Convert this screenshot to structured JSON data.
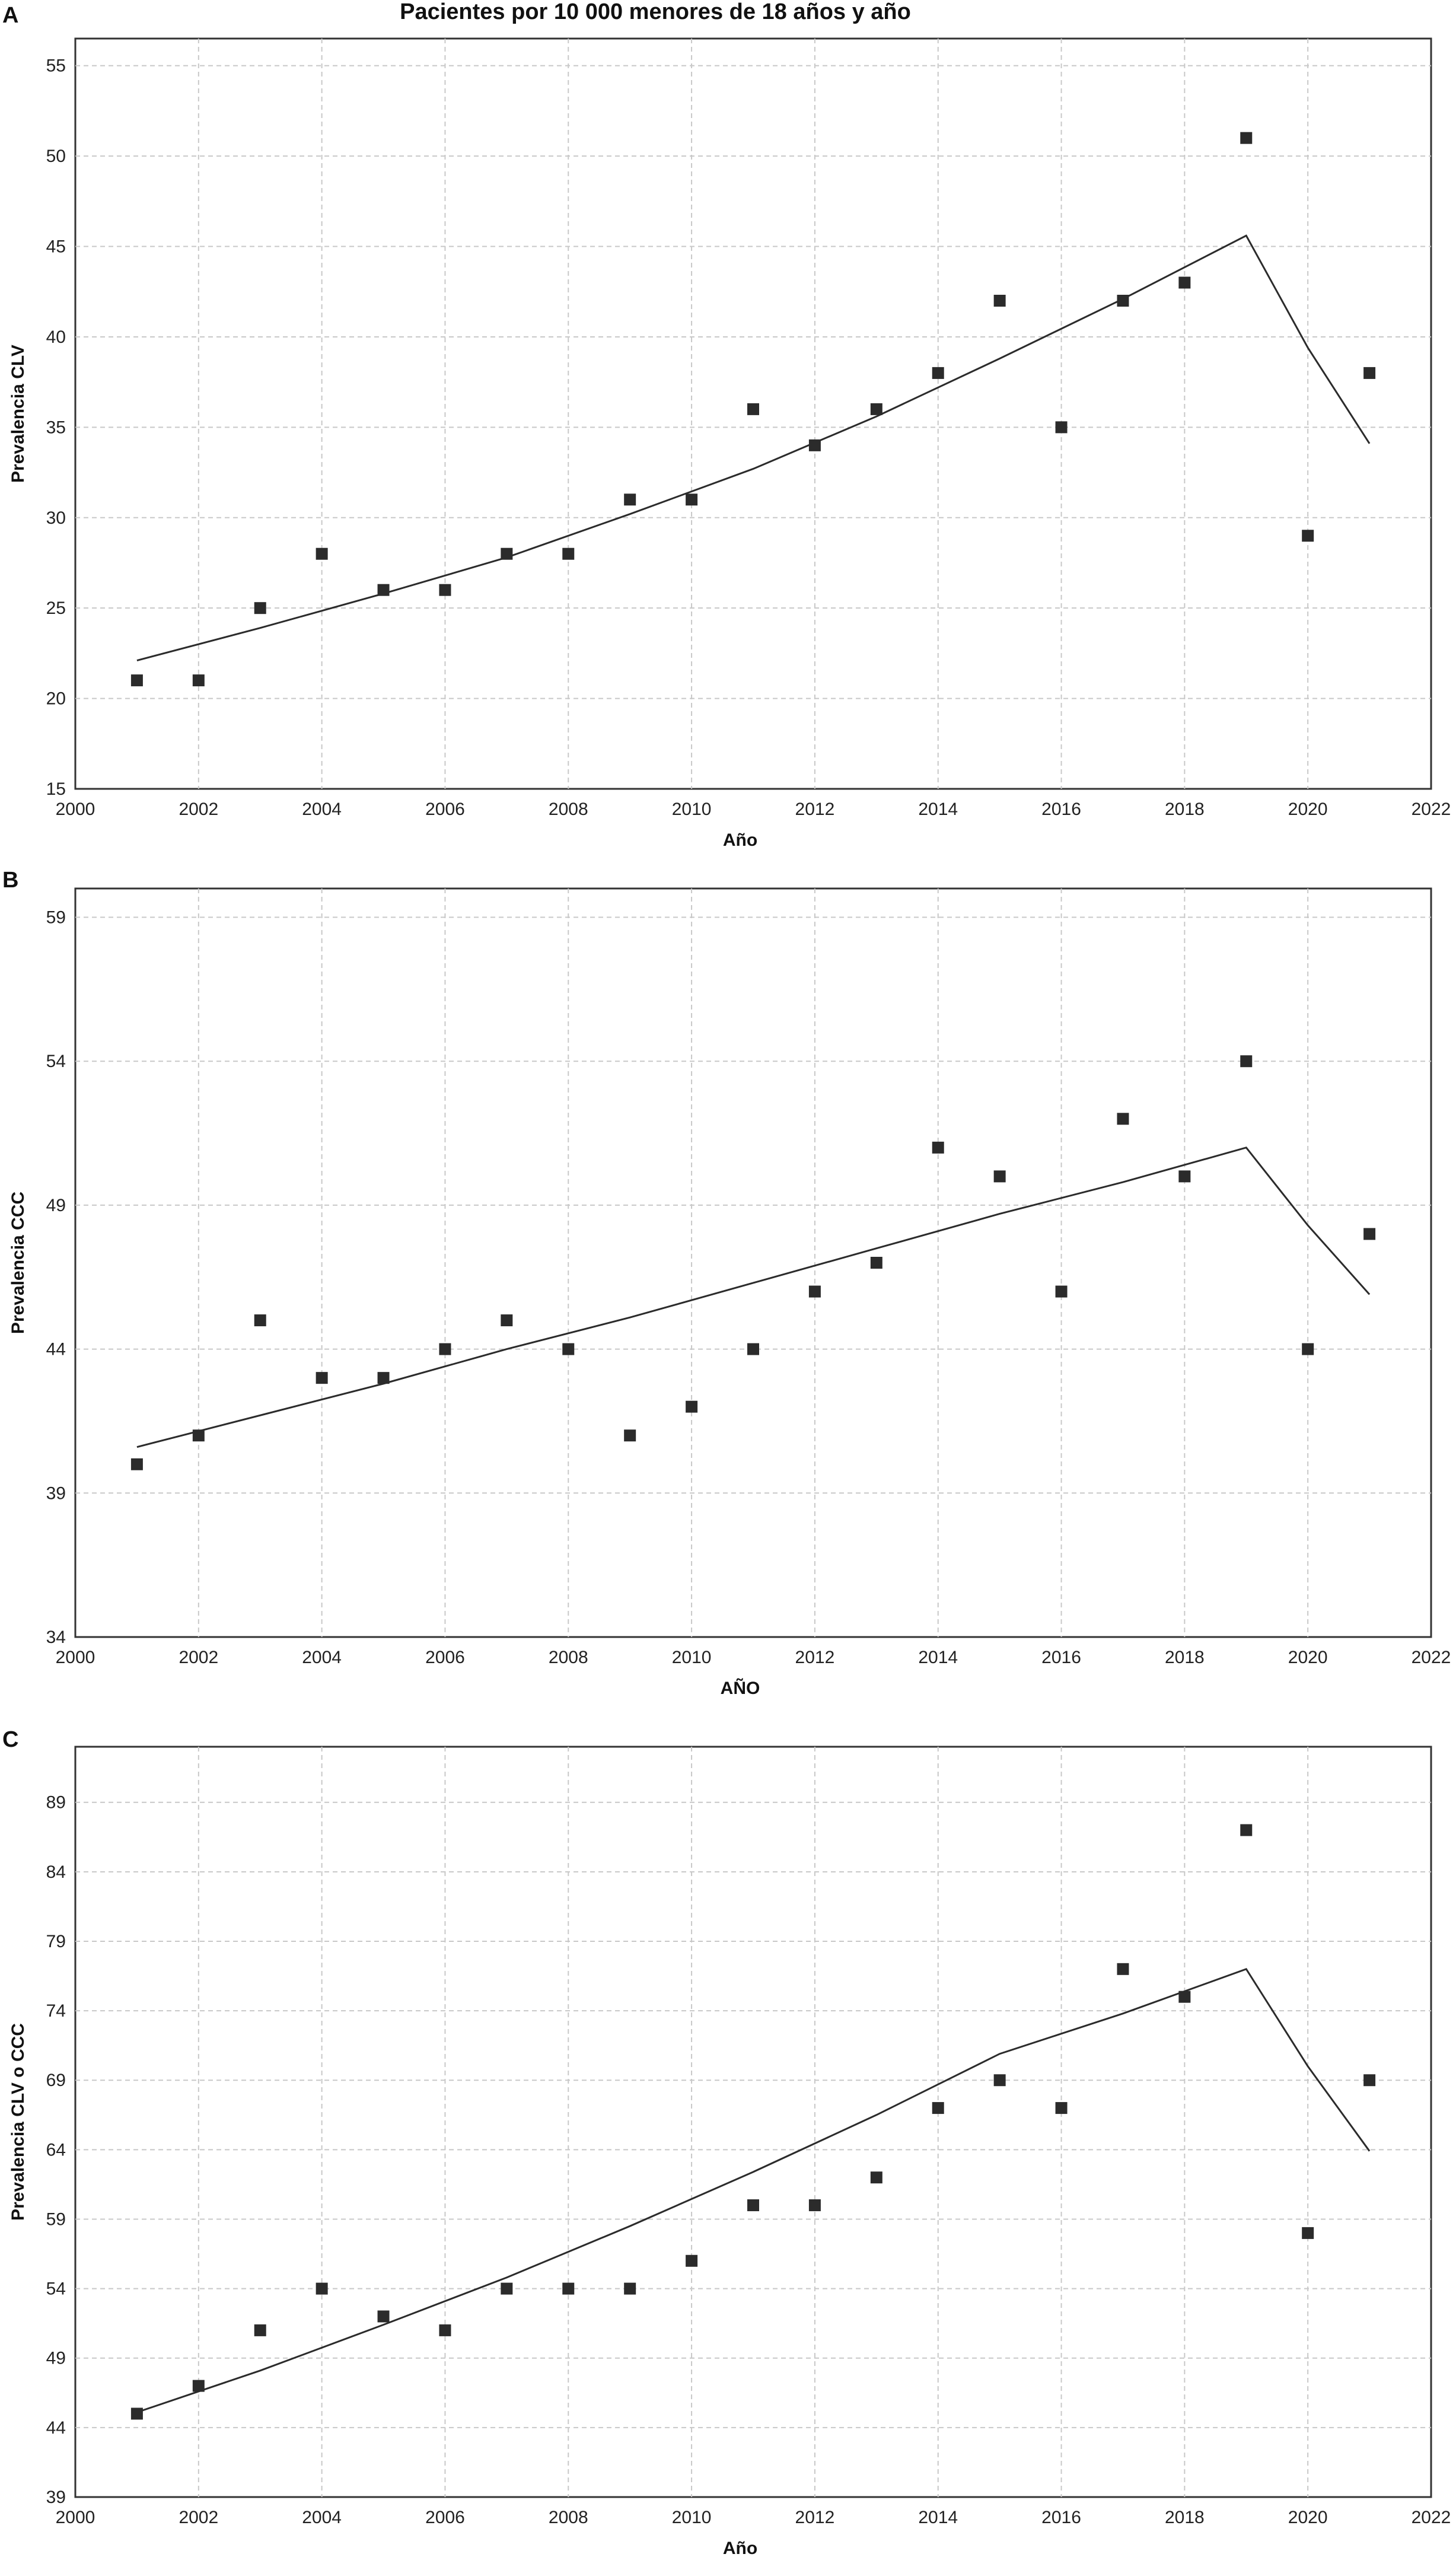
{
  "title": "Pacientes por 10 000 menores de 18 años y año",
  "chart_data": [
    {
      "type": "scatter",
      "panel": "A",
      "xlabel": "Año",
      "ylabel": "Prevalencia CLV",
      "xlim": [
        2000,
        2022
      ],
      "ylim": [
        15,
        56.5
      ],
      "xticks": [
        2000,
        2002,
        2004,
        2006,
        2008,
        2010,
        2012,
        2014,
        2016,
        2018,
        2020,
        2022
      ],
      "yticks": [
        15,
        20,
        25,
        30,
        35,
        40,
        45,
        50,
        55
      ],
      "grid": true,
      "x": [
        2001,
        2002,
        2003,
        2004,
        2005,
        2006,
        2007,
        2008,
        2009,
        2010,
        2011,
        2012,
        2013,
        2014,
        2015,
        2016,
        2017,
        2018,
        2019,
        2020,
        2021
      ],
      "y": [
        21,
        21,
        25,
        28,
        26,
        26,
        28,
        28,
        31,
        31,
        36,
        34,
        36,
        38,
        42,
        35,
        42,
        43,
        51,
        29,
        38
      ],
      "fit": {
        "x": [
          2001,
          2003,
          2005,
          2007,
          2009,
          2011,
          2013,
          2015,
          2017,
          2019,
          2020,
          2021
        ],
        "y": [
          22.1,
          23.9,
          25.8,
          27.8,
          30.2,
          32.7,
          35.6,
          38.8,
          42.1,
          45.6,
          39.4,
          34.1
        ]
      }
    },
    {
      "type": "scatter",
      "panel": "B",
      "xlabel": "AÑO",
      "ylabel": "Prevalencia CCC",
      "xlim": [
        2000,
        2022
      ],
      "ylim": [
        34,
        60
      ],
      "xticks": [
        2000,
        2002,
        2004,
        2006,
        2008,
        2010,
        2012,
        2014,
        2016,
        2018,
        2020,
        2022
      ],
      "yticks": [
        34,
        39,
        44,
        49,
        54,
        59
      ],
      "grid": true,
      "x": [
        2001,
        2002,
        2003,
        2004,
        2005,
        2006,
        2007,
        2008,
        2009,
        2010,
        2011,
        2012,
        2013,
        2014,
        2015,
        2016,
        2017,
        2018,
        2019,
        2020,
        2021
      ],
      "y": [
        40,
        41,
        45,
        43,
        43,
        44,
        45,
        44,
        41,
        42,
        44,
        46,
        47,
        51,
        50,
        46,
        52,
        50,
        54,
        44,
        48
      ],
      "fit": {
        "x": [
          2001,
          2003,
          2005,
          2007,
          2009,
          2011,
          2013,
          2015,
          2017,
          2019,
          2020,
          2021
        ],
        "y": [
          40.6,
          41.7,
          42.8,
          44.0,
          45.1,
          46.3,
          47.5,
          48.7,
          49.8,
          51.0,
          48.3,
          45.9
        ]
      }
    },
    {
      "type": "scatter",
      "panel": "C",
      "xlabel": "Año",
      "ylabel": "Prevalencia CLV o CCC",
      "xlim": [
        2000,
        2022
      ],
      "ylim": [
        39,
        93
      ],
      "xticks": [
        2000,
        2002,
        2004,
        2006,
        2008,
        2010,
        2012,
        2014,
        2016,
        2018,
        2020,
        2022
      ],
      "yticks": [
        39,
        44,
        49,
        54,
        59,
        64,
        69,
        74,
        79,
        84,
        89
      ],
      "grid": true,
      "x": [
        2001,
        2002,
        2003,
        2004,
        2005,
        2006,
        2007,
        2008,
        2009,
        2010,
        2011,
        2012,
        2013,
        2014,
        2015,
        2016,
        2017,
        2018,
        2019,
        2020,
        2021
      ],
      "y": [
        45,
        47,
        51,
        54,
        52,
        51,
        54,
        54,
        54,
        56,
        60,
        60,
        62,
        67,
        69,
        67,
        77,
        75,
        87,
        58,
        69
      ],
      "fit": {
        "x": [
          2001,
          2003,
          2005,
          2007,
          2009,
          2011,
          2013,
          2015,
          2017,
          2019,
          2020,
          2021
        ],
        "y": [
          45.1,
          48.1,
          51.4,
          54.8,
          58.5,
          62.4,
          66.5,
          70.9,
          73.8,
          77.0,
          70.0,
          63.9
        ]
      }
    }
  ]
}
